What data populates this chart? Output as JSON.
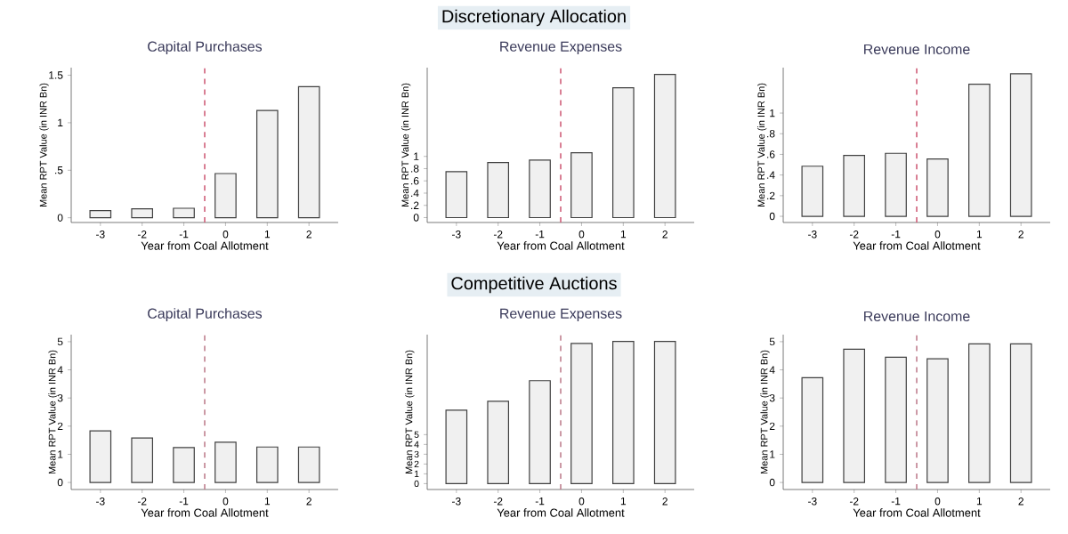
{
  "chart_data": [
    {
      "type": "bar",
      "title": "Capital Purchases",
      "xlabel": "Year from Coal Allotment",
      "ylabel": "Mean RPT Value (in INR Bn)",
      "x": [
        -3,
        -2,
        -1,
        0,
        1,
        2
      ],
      "xlim": [
        -3.7,
        2.7
      ],
      "xticks": [
        -3,
        -2,
        -1,
        0,
        1,
        2
      ],
      "ylim": [
        -0.05,
        1.58
      ],
      "yticks": [
        0,
        {
          "value": 0.5,
          "label": ".5"
        },
        1,
        1.5
      ],
      "values": [
        0.075,
        0.094,
        0.1,
        0.465,
        1.13,
        1.38
      ],
      "color": "#f0f0f0",
      "ref_lines": [
        {
          "axis": "x",
          "value": -0.5,
          "color": "#d0607a",
          "line_style": "dashed"
        }
      ]
    },
    {
      "type": "bar",
      "title": "Revenue Expenses",
      "xlabel": "Year from Coal Allotment",
      "ylabel": "Mean RPT Value (in INR Bn)",
      "annotations": [
        "Discretionary Allocation"
      ],
      "x": [
        -3,
        -2,
        -1,
        0,
        1,
        2
      ],
      "xlim": [
        -3.7,
        2.7
      ],
      "xticks": [
        -3,
        -2,
        -1,
        0,
        1,
        2
      ],
      "ylim": [
        -0.08,
        2.45
      ],
      "yticks": [
        0,
        {
          "value": 0.2,
          "label": ".2"
        },
        {
          "value": 0.4,
          "label": ".4"
        },
        {
          "value": 0.6,
          "label": ".6"
        },
        {
          "value": 0.8,
          "label": ".8"
        },
        1
      ],
      "values": [
        0.75,
        0.9,
        0.94,
        1.06,
        2.12,
        2.34
      ],
      "color": "#f0f0f0",
      "ref_lines": [
        {
          "axis": "x",
          "value": -0.5,
          "color": "#d0607a",
          "line_style": "dashed"
        }
      ]
    },
    {
      "type": "bar",
      "title": "Revenue Income",
      "xlabel": "Year from Coal Allotment",
      "ylabel": "Mean RPT Value (in INR Bn)",
      "x": [
        -3,
        -2,
        -1,
        0,
        1,
        2
      ],
      "xlim": [
        -3.7,
        2.7
      ],
      "xticks": [
        -3,
        -2,
        -1,
        0,
        1,
        2
      ],
      "ylim": [
        -0.06,
        1.44
      ],
      "yticks": [
        0,
        {
          "value": 0.2,
          "label": ".2"
        },
        {
          "value": 0.4,
          "label": ".4"
        },
        {
          "value": 0.6,
          "label": ".6"
        },
        {
          "value": 0.8,
          "label": ".8"
        },
        1
      ],
      "values": [
        0.485,
        0.59,
        0.61,
        0.555,
        1.28,
        1.38
      ],
      "color": "#f0f0f0",
      "ref_lines": [
        {
          "axis": "x",
          "value": -0.5,
          "color": "#d0607a",
          "line_style": "dashed"
        }
      ]
    },
    {
      "type": "bar",
      "title": "Capital Purchases",
      "xlabel": "Year from Coal Allotment",
      "ylabel": "Mean RPT Value (in INR Bn)",
      "x": [
        -3,
        -2,
        -1,
        0,
        1,
        2
      ],
      "xlim": [
        -3.7,
        2.7
      ],
      "xticks": [
        -3,
        -2,
        -1,
        0,
        1,
        2
      ],
      "ylim": [
        -0.25,
        5.25
      ],
      "yticks": [
        0,
        1,
        2,
        3,
        4,
        5
      ],
      "values": [
        1.83,
        1.58,
        1.24,
        1.43,
        1.26,
        1.26
      ],
      "color": "#f0f0f0",
      "ref_lines": [
        {
          "axis": "x",
          "value": -0.5,
          "color": "#c08090",
          "line_style": "dashed"
        }
      ]
    },
    {
      "type": "bar",
      "title": "Revenue Expenses",
      "xlabel": "Year from Coal Allotment",
      "ylabel": "Mean RPT Value (in INR Bn)",
      "annotations": [
        "Competitive Auctions"
      ],
      "x": [
        -3,
        -2,
        -1,
        0,
        1,
        2
      ],
      "xlim": [
        -3.7,
        2.7
      ],
      "xticks": [
        -3,
        -2,
        -1,
        0,
        1,
        2
      ],
      "ylim": [
        -0.6,
        15.2
      ],
      "yticks": [
        0,
        1,
        2,
        3,
        4,
        5
      ],
      "values": [
        7.5,
        8.4,
        10.5,
        14.3,
        14.5,
        14.5
      ],
      "color": "#f0f0f0",
      "ref_lines": [
        {
          "axis": "x",
          "value": -0.5,
          "color": "#c08090",
          "line_style": "dashed"
        }
      ]
    },
    {
      "type": "bar",
      "title": "Revenue Income",
      "xlabel": "Year from Coal Allotment",
      "ylabel": "Mean RPT Value (in INR Bn)",
      "x": [
        -3,
        -2,
        -1,
        0,
        1,
        2
      ],
      "xlim": [
        -3.7,
        2.7
      ],
      "xticks": [
        -3,
        -2,
        -1,
        0,
        1,
        2
      ],
      "ylim": [
        -0.25,
        5.25
      ],
      "yticks": [
        0,
        1,
        2,
        3,
        4,
        5
      ],
      "values": [
        3.72,
        4.73,
        4.45,
        4.39,
        4.92,
        4.92
      ],
      "color": "#f0f0f0",
      "ref_lines": [
        {
          "axis": "x",
          "value": -0.5,
          "color": "#c08090",
          "line_style": "dashed"
        }
      ]
    }
  ]
}
